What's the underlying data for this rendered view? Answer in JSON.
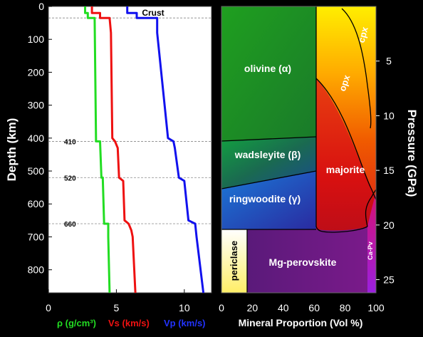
{
  "left_panel": {
    "y_axis_label": "Depth (km)",
    "depth_ticks": [
      0,
      100,
      200,
      300,
      400,
      500,
      600,
      700,
      800
    ],
    "depth_range": [
      0,
      870
    ],
    "x_ticks": [
      0,
      5,
      10
    ],
    "x_range": [
      0,
      12
    ],
    "crust_label": "Crust",
    "discontinuities": [
      {
        "depth": 35,
        "label": ""
      },
      {
        "depth": 410,
        "label": "410"
      },
      {
        "depth": 520,
        "label": "520"
      },
      {
        "depth": 660,
        "label": "660"
      }
    ],
    "legend": {
      "rho": "ρ (g/cm³)",
      "vs": "Vs (km/s)",
      "vp": "Vp (km/s)"
    },
    "colors": {
      "rho": "#22dd22",
      "vs": "#ee1111",
      "vp": "#1111ee"
    },
    "series": {
      "rho": [
        [
          2.7,
          0
        ],
        [
          2.7,
          20
        ],
        [
          2.9,
          20
        ],
        [
          2.9,
          35
        ],
        [
          3.4,
          35
        ],
        [
          3.5,
          400
        ],
        [
          3.5,
          410
        ],
        [
          3.8,
          410
        ],
        [
          3.9,
          520
        ],
        [
          4.0,
          520
        ],
        [
          4.1,
          660
        ],
        [
          4.4,
          660
        ],
        [
          4.4,
          700
        ],
        [
          4.5,
          870
        ]
      ],
      "vs": [
        [
          3.2,
          0
        ],
        [
          3.2,
          20
        ],
        [
          3.8,
          20
        ],
        [
          3.8,
          35
        ],
        [
          4.5,
          35
        ],
        [
          4.6,
          80
        ],
        [
          4.7,
          400
        ],
        [
          4.9,
          410
        ],
        [
          5.1,
          430
        ],
        [
          5.2,
          520
        ],
        [
          5.5,
          530
        ],
        [
          5.6,
          650
        ],
        [
          5.9,
          660
        ],
        [
          6.1,
          680
        ],
        [
          6.2,
          700
        ],
        [
          6.4,
          870
        ]
      ],
      "vp": [
        [
          5.8,
          0
        ],
        [
          5.8,
          20
        ],
        [
          6.5,
          20
        ],
        [
          6.5,
          35
        ],
        [
          8.0,
          35
        ],
        [
          8.0,
          80
        ],
        [
          8.1,
          120
        ],
        [
          8.8,
          400
        ],
        [
          9.2,
          410
        ],
        [
          9.3,
          430
        ],
        [
          9.6,
          520
        ],
        [
          10.0,
          530
        ],
        [
          10.3,
          650
        ],
        [
          10.8,
          660
        ],
        [
          10.9,
          700
        ],
        [
          11.4,
          870
        ]
      ]
    }
  },
  "right_panel": {
    "x_axis_label": "Mineral Proportion (Vol %)",
    "x_ticks": [
      0,
      20,
      40,
      60,
      80,
      100
    ],
    "y_axis_label": "Pressure (GPa)",
    "pressure_ticks": [
      5,
      10,
      15,
      20,
      25
    ],
    "phases": {
      "olivine": "olivine (α)",
      "wadsleyite": "wadsleyite (β)",
      "ringwoodite": "ringwoodite (γ)",
      "majorite": "majorite",
      "periclase": "periclase",
      "mg_perovskite": "Mg-perovskite",
      "cpx": "cpx",
      "opx": "opx",
      "ca_pv": "Ca-Pv"
    }
  }
}
